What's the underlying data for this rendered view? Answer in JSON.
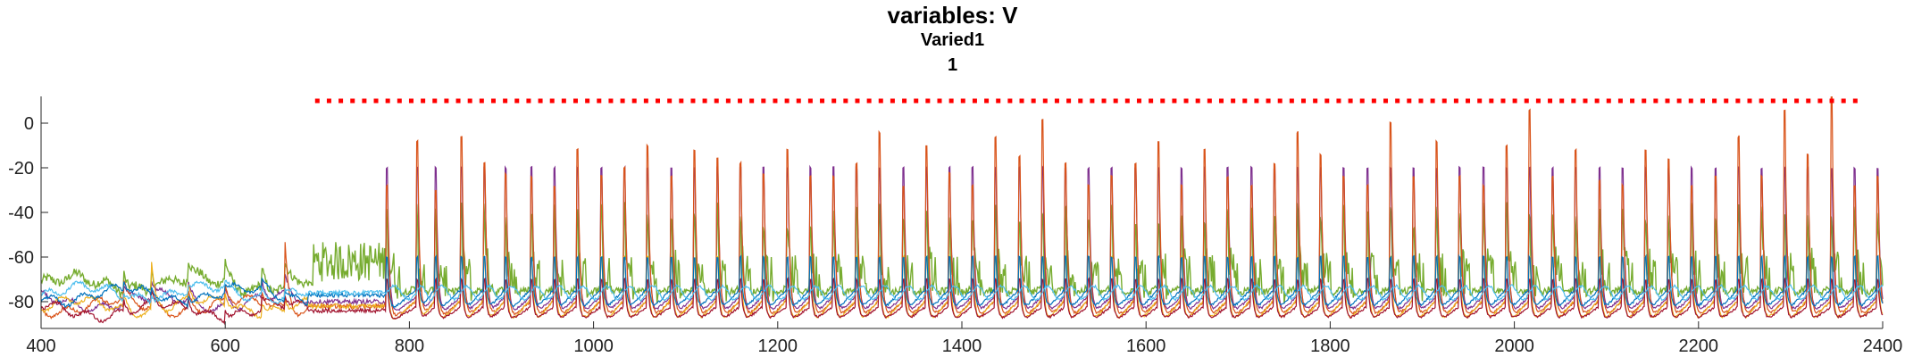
{
  "chart_data": {
    "type": "line",
    "title": "variables: V",
    "subtitle": "Varied1",
    "subsubtitle": "1",
    "xlabel": "",
    "ylabel": "",
    "xlim": [
      400,
      2400
    ],
    "ylim": [
      -92,
      12
    ],
    "xticks": [
      400,
      600,
      800,
      1000,
      1200,
      1400,
      1600,
      1800,
      2000,
      2200,
      2400
    ],
    "yticks": [
      0,
      -20,
      -40,
      -60,
      -80
    ],
    "grid": false,
    "series": [
      {
        "color": "#77AC30",
        "baseline": -72,
        "peak_level": -42,
        "trough_depth": -80,
        "description": "green trace"
      },
      {
        "color": "#7E2F8E",
        "baseline": -80,
        "peak_level": -25,
        "trough_depth": -88
      },
      {
        "color": "#D95319",
        "baseline": -82,
        "peak_level": -10,
        "trough_depth": -90
      },
      {
        "color": "#EDB120",
        "baseline": -82,
        "peak_level": -60,
        "trough_depth": -92
      },
      {
        "color": "#A2142F",
        "baseline": -84,
        "peak_level": -70,
        "trough_depth": -90
      },
      {
        "color": "#0072BD",
        "baseline": -77,
        "peak_level": -60,
        "trough_depth": -86
      },
      {
        "color": "#4DBEEE",
        "baseline": -76,
        "peak_level": -72,
        "trough_depth": -82
      }
    ],
    "spike_times": [
      775,
      808,
      828,
      856,
      881,
      904,
      932,
      957,
      982,
      1008,
      1033,
      1058,
      1084,
      1109,
      1134,
      1159,
      1184,
      1210,
      1235,
      1260,
      1285,
      1310,
      1336,
      1361,
      1386,
      1411,
      1436,
      1462,
      1487,
      1512,
      1537,
      1562,
      1588,
      1613,
      1638,
      1663,
      1688,
      1714,
      1739,
      1764,
      1789,
      1814,
      1840,
      1865,
      1890,
      1915,
      1940,
      1966,
      1991,
      2016,
      2041,
      2066,
      2092,
      2117,
      2142,
      2167,
      2192,
      2218,
      2243,
      2268,
      2293,
      2318,
      2344,
      2369,
      2394
    ],
    "spike_peaks": [
      -28,
      -8,
      -30,
      -6,
      -18,
      -23,
      -24,
      -28,
      -12,
      -24,
      -20,
      -10,
      -24,
      -12,
      -16,
      -18,
      -23,
      -12,
      -24,
      -24,
      -18,
      -4,
      -28,
      -10,
      -22,
      -28,
      -6,
      -15,
      2,
      -18,
      -28,
      -24,
      -18,
      -8,
      -28,
      -12,
      -24,
      -28,
      -18,
      -4,
      -14,
      -24,
      -28,
      0,
      -24,
      -8,
      -24,
      -28,
      -10,
      6,
      -24,
      -12,
      -26,
      -28,
      -12,
      -16,
      -28,
      -24,
      -6,
      -24,
      6,
      -14,
      12,
      -28,
      -24
    ],
    "marker_row": {
      "color": "#FF0000",
      "y": 10,
      "x_start": 700,
      "x_end": 2380,
      "spacing": 25.5
    }
  }
}
